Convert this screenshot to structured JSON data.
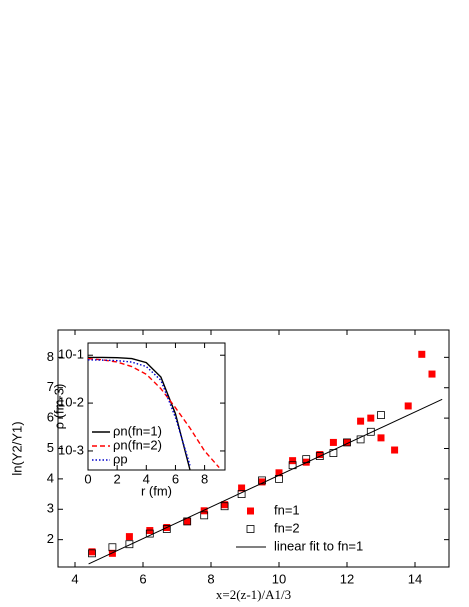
{
  "chart_data": [
    {
      "type": "scatter",
      "x_label": "x=2(z-1)/A1/3",
      "y_label": "ln(Y2/Y1)",
      "xlim": [
        3.5,
        15
      ],
      "ylim": [
        1.1,
        8.9
      ],
      "xticks": [
        4,
        6,
        8,
        10,
        12,
        14
      ],
      "yticks": [
        2,
        3,
        4,
        5,
        6,
        7,
        8
      ],
      "legend": "lower right",
      "series": [
        {
          "name": "fn=1",
          "color": "#ff0000",
          "marker": "filled-square",
          "x": [
            4.5,
            5.1,
            5.6,
            6.2,
            6.7,
            7.3,
            7.8,
            8.4,
            8.9,
            9.5,
            10.0,
            10.4,
            10.8,
            11.2,
            11.6,
            12.0,
            12.4,
            12.7,
            13.0,
            13.4,
            13.8,
            14.2,
            14.5
          ],
          "values": [
            1.6,
            1.55,
            2.1,
            2.3,
            2.4,
            2.6,
            2.95,
            3.15,
            3.7,
            3.9,
            4.2,
            4.6,
            4.55,
            4.8,
            5.2,
            5.2,
            5.9,
            6.0,
            5.35,
            4.95,
            6.4,
            8.1,
            7.45
          ]
        },
        {
          "name": "fn=2",
          "color": "#000000",
          "marker": "open-square",
          "x": [
            4.5,
            5.1,
            5.6,
            6.2,
            6.7,
            7.3,
            7.8,
            8.4,
            8.9,
            9.5,
            10.0,
            10.4,
            10.8,
            11.2,
            11.6,
            12.0,
            12.4,
            12.7,
            13.0
          ],
          "values": [
            1.55,
            1.75,
            1.85,
            2.2,
            2.35,
            2.6,
            2.8,
            3.1,
            3.5,
            3.95,
            4.0,
            4.45,
            4.65,
            4.75,
            4.85,
            5.2,
            5.3,
            5.55,
            6.1
          ]
        },
        {
          "name": "linear fit to fn=1",
          "color": "#000000",
          "marker": "line",
          "x": [
            4.4,
            14.8
          ],
          "values": [
            1.2,
            6.62
          ]
        }
      ]
    },
    {
      "type": "line",
      "log_y": true,
      "x_label": "r (fm)",
      "y_label": "ρ (fm-3)",
      "xlim": [
        0,
        9.4
      ],
      "ylim": [
        0.0004,
        0.18
      ],
      "xticks": [
        0,
        2,
        4,
        6,
        8
      ],
      "yticks": [
        {
          "value": 0.001,
          "label": "10-3"
        },
        {
          "value": 0.01,
          "label": "10-2"
        },
        {
          "value": 0.1,
          "label": "10-1"
        }
      ],
      "x": [
        0,
        1,
        2,
        3,
        4,
        5,
        6,
        7,
        8,
        9
      ],
      "series": [
        {
          "name": "ρn(fn=1)",
          "color": "#000000",
          "dash": "solid",
          "values": [
            0.09,
            0.09,
            0.089,
            0.085,
            0.07,
            0.035,
            0.006,
            0.0004,
            null,
            null
          ]
        },
        {
          "name": "ρn(fn=2)",
          "color": "#ff0000",
          "dash": "dashed",
          "values": [
            0.085,
            0.08,
            0.072,
            0.058,
            0.04,
            0.02,
            0.008,
            0.003,
            0.001,
            0.00045
          ]
        },
        {
          "name": "ρp",
          "color": "#0000cc",
          "dash": "dotted",
          "values": [
            0.08,
            0.079,
            0.077,
            0.072,
            0.058,
            0.03,
            0.005,
            0.0005,
            null,
            null
          ]
        }
      ]
    }
  ]
}
